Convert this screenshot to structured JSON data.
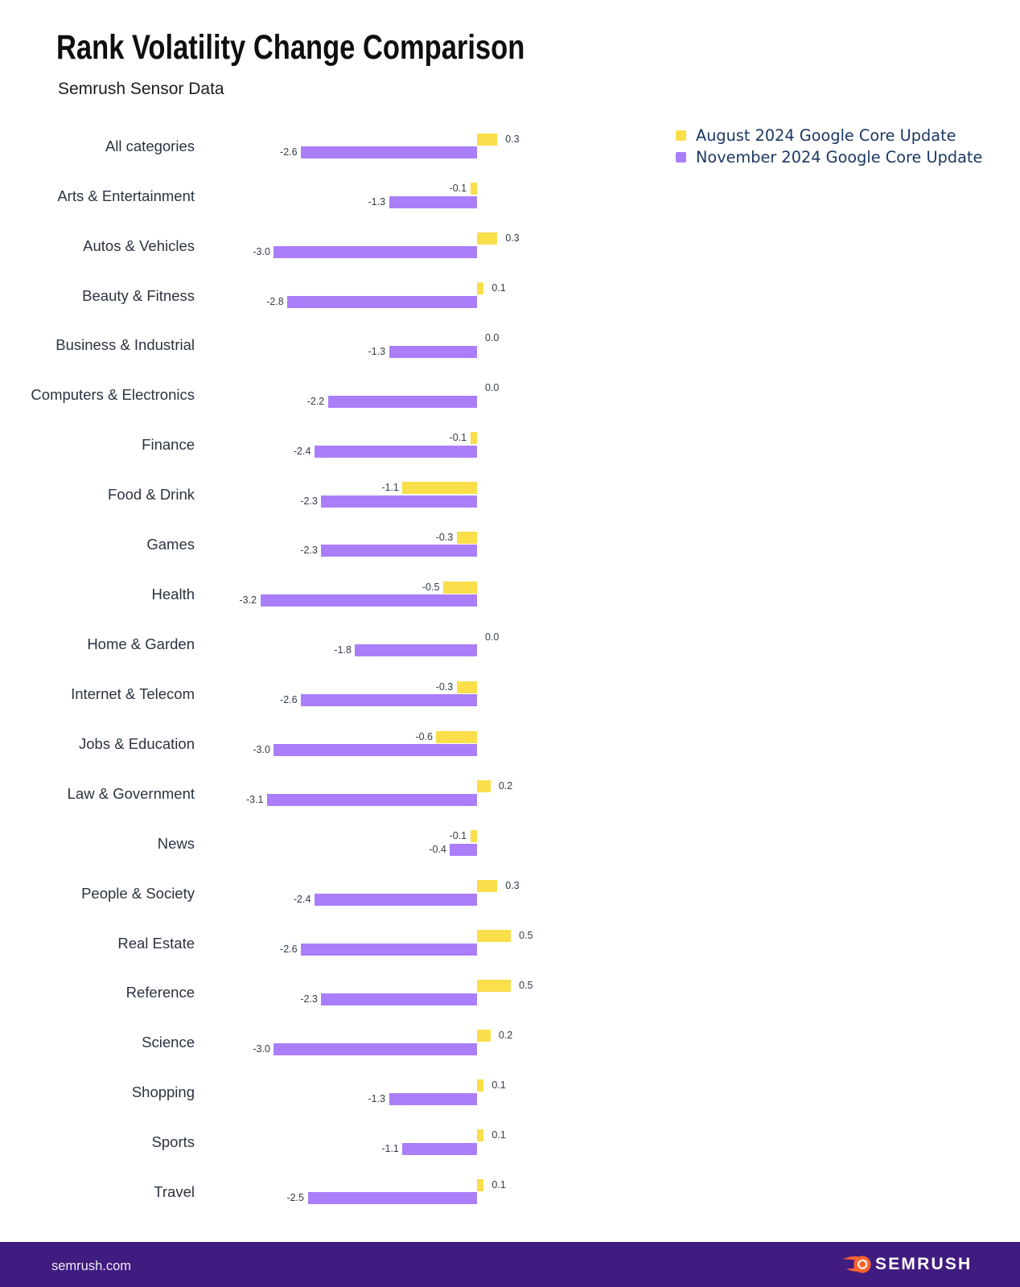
{
  "header": {
    "title": "Rank Volatility Change Comparison",
    "subtitle": "Semrush Sensor Data"
  },
  "chart_data": {
    "type": "bar",
    "orientation": "horizontal",
    "title": "Rank Volatility Change Comparison",
    "subtitle": "Semrush Sensor Data",
    "xlabel": "",
    "ylabel": "",
    "xlim": [
      -3.2,
      0.5
    ],
    "grid": false,
    "legend_position": "top-right",
    "value_labels": "one-decimal",
    "categories": [
      "All categories",
      "Arts & Entertainment",
      "Autos & Vehicles",
      "Beauty & Fitness",
      "Business & Industrial",
      "Computers & Electronics",
      "Finance",
      "Food & Drink",
      "Games",
      "Health",
      "Home & Garden",
      "Internet & Telecom",
      "Jobs & Education",
      "Law & Government",
      "News",
      "People & Society",
      "Real Estate",
      "Reference",
      "Science",
      "Shopping",
      "Sports",
      "Travel"
    ],
    "series": [
      {
        "name": "August 2024 Google Core Update",
        "color": "#fade4a",
        "values": [
          0.3,
          -0.1,
          0.3,
          0.1,
          0.0,
          0.0,
          -0.1,
          -1.1,
          -0.3,
          -0.5,
          0.0,
          -0.3,
          -0.6,
          0.2,
          -0.1,
          0.3,
          0.5,
          0.5,
          0.2,
          0.1,
          0.1,
          0.1
        ]
      },
      {
        "name": "November 2024 Google Core Update",
        "color": "#a97ef8",
        "values": [
          -2.6,
          -1.3,
          -3.0,
          -2.8,
          -1.3,
          -2.2,
          -2.4,
          -2.3,
          -2.3,
          -3.2,
          -1.8,
          -2.6,
          -3.0,
          -3.1,
          -0.4,
          -2.4,
          -2.6,
          -2.3,
          -3.0,
          -1.3,
          -1.1,
          -2.5
        ]
      }
    ]
  },
  "colors": {
    "august_bar": "#fade4a",
    "november_bar": "#a97ef8",
    "legend_text": "#1c3863",
    "category_label": "#2b3340",
    "value_label": "#333c47",
    "footer_background": "#411c80",
    "logo_orange": "#ff642d",
    "background": "#ffffff"
  },
  "footer": {
    "url": "semrush.com",
    "brand": "SEMRUSH"
  }
}
